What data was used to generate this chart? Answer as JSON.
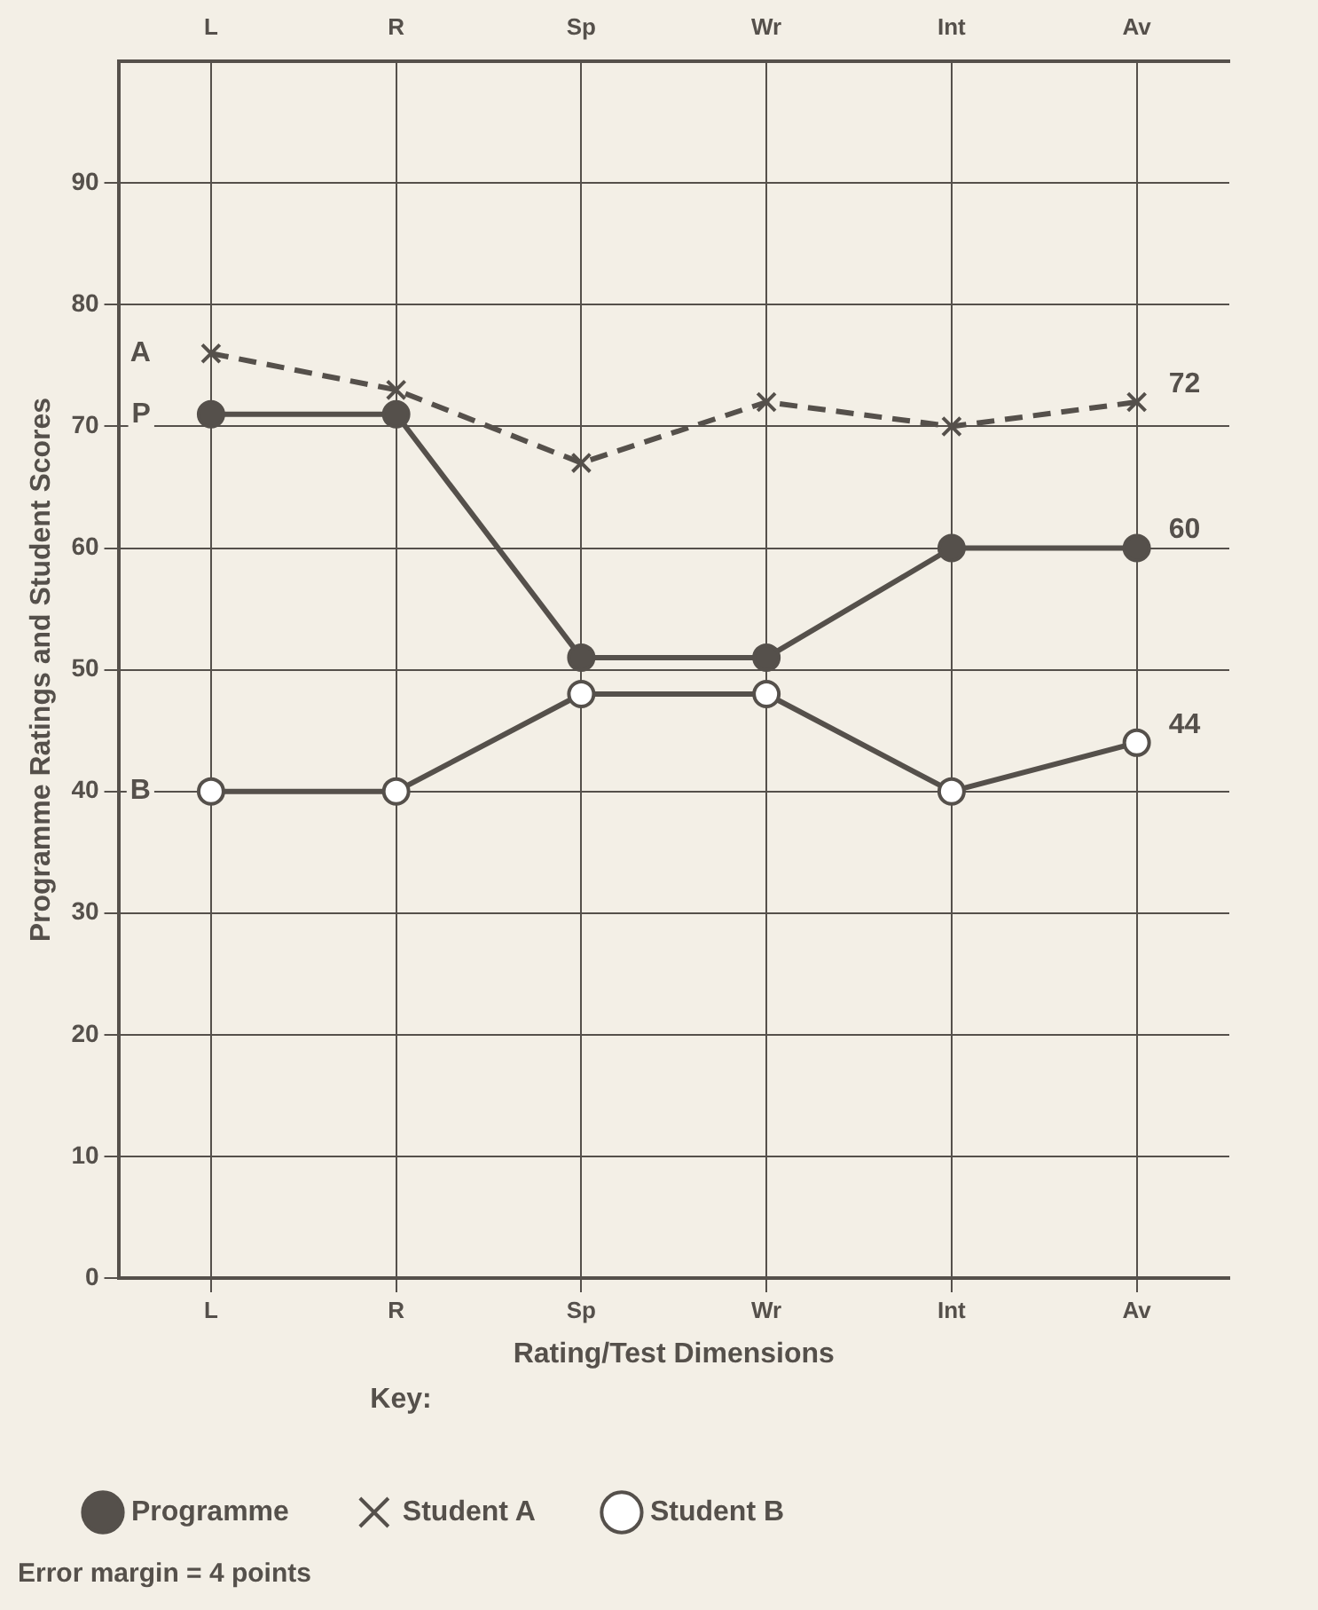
{
  "chart_data": {
    "type": "line",
    "xlabel": "Rating/Test Dimensions",
    "ylabel": "Programme Ratings and Student Scores",
    "legend_title": "Key:",
    "legend": "bottom",
    "grid": true,
    "categories": [
      "L",
      "R",
      "Sp",
      "Wr",
      "Int",
      "Av"
    ],
    "ylim": [
      0,
      100
    ],
    "yticks": [
      0,
      10,
      20,
      30,
      40,
      50,
      60,
      70,
      80,
      90
    ],
    "series": [
      {
        "name": "Programme",
        "color": "#55504b",
        "marker": "circle",
        "line_style": "solid",
        "values": [
          71,
          71,
          51,
          51,
          60,
          60
        ],
        "value_labels": [
          null,
          null,
          null,
          null,
          null,
          "60"
        ]
      },
      {
        "name": "Student A",
        "color": "#55504b",
        "marker": "cross",
        "line_style": "dashed",
        "values": [
          76,
          73,
          67,
          72,
          70,
          72
        ],
        "value_labels": [
          null,
          null,
          null,
          null,
          null,
          "72"
        ]
      },
      {
        "name": "Student B",
        "color": "#55504b",
        "marker": "open circle",
        "line_style": "solid",
        "values": [
          40,
          40,
          48,
          48,
          40,
          44
        ],
        "value_labels": [
          null,
          null,
          null,
          null,
          null,
          "44"
        ]
      }
    ],
    "annotations": [
      {
        "text": "A",
        "x": "L",
        "y": 76
      },
      {
        "text": "P",
        "x": "L",
        "y": 71
      },
      {
        "text": "B",
        "x": "L",
        "y": 40
      },
      "Error margin = 4 points"
    ]
  }
}
